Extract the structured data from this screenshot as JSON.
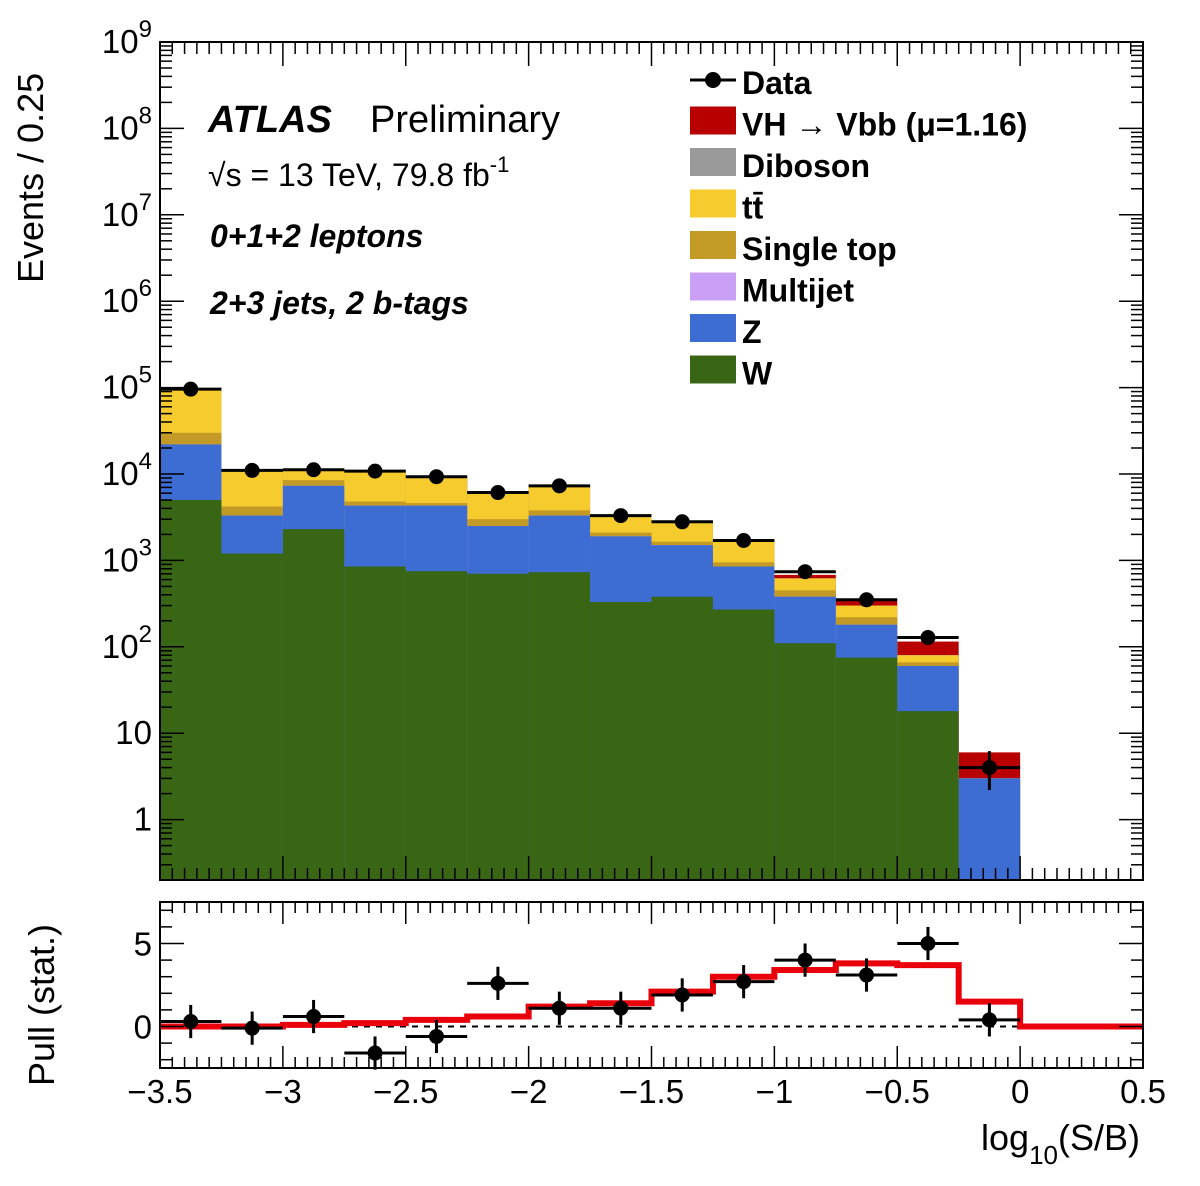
{
  "labels": {
    "atlas": "ATLAS",
    "preliminary": "Preliminary",
    "sqrt": "√s",
    "energy_lumi": " = 13 TeV, 79.8 fb",
    "lumi_exp": "-1",
    "leptons": "0+1+2 leptons",
    "jets": "2+3 jets, 2 b-tags"
  },
  "chart_data": [
    {
      "type": "bar",
      "stacked": true,
      "ylabel": "Events / 0.25",
      "yscale": "log",
      "ylim": [
        0.2,
        1000000000
      ],
      "xlim": [
        -3.5,
        0.5
      ],
      "x_edges": [
        -3.5,
        -3.25,
        -3.0,
        -2.75,
        -2.5,
        -2.25,
        -2.0,
        -1.75,
        -1.5,
        -1.25,
        -1.0,
        -0.75,
        -0.5,
        -0.25,
        0.0,
        0.25,
        0.5
      ],
      "y_tick_labels": [
        "1",
        "10",
        "10^2",
        "10^3",
        "10^4",
        "10^5",
        "10^6",
        "10^7",
        "10^8",
        "10^9"
      ],
      "legend_position": "top-right",
      "legend": [
        {
          "label": "Data",
          "kind": "marker",
          "color": "#000000"
        },
        {
          "label": "VH → Vbb (μ=1.16)",
          "kind": "fill",
          "color": "#b80000"
        },
        {
          "label": "Diboson",
          "kind": "fill",
          "color": "#999999"
        },
        {
          "label": "tt̄",
          "kind": "fill",
          "color": "#f5cb2e"
        },
        {
          "label": "Single top",
          "kind": "fill",
          "color": "#c39a25"
        },
        {
          "label": "Multijet",
          "kind": "fill",
          "color": "#c9a0f5"
        },
        {
          "label": "Z",
          "kind": "fill",
          "color": "#3d6cd2"
        },
        {
          "label": "W",
          "kind": "fill",
          "color": "#386614"
        }
      ],
      "stack_tops": {
        "W": [
          5000,
          1200,
          2300,
          850,
          750,
          700,
          730,
          330,
          380,
          270,
          110,
          75,
          18,
          0,
          0,
          0
        ],
        "Z": [
          22000,
          3300,
          7300,
          4300,
          4300,
          2500,
          3300,
          1900,
          1500,
          850,
          380,
          180,
          60,
          3,
          0,
          0
        ],
        "Multijet": [
          22000,
          3300,
          7300,
          4300,
          4300,
          2500,
          3300,
          1900,
          1500,
          850,
          380,
          180,
          60,
          3,
          0,
          0
        ],
        "Single top": [
          30000,
          4200,
          8500,
          4800,
          4600,
          3000,
          3800,
          2100,
          1650,
          950,
          450,
          220,
          66,
          3,
          0,
          0
        ],
        "tt̄": [
          95000,
          11200,
          11300,
          10800,
          9400,
          6200,
          7400,
          3300,
          2700,
          1650,
          620,
          300,
          80,
          3,
          0,
          0
        ],
        "Diboson": [
          95000,
          11200,
          11300,
          10800,
          9400,
          6200,
          7400,
          3300,
          2700,
          1650,
          620,
          300,
          80,
          3,
          0,
          0
        ],
        "VH → Vbb (μ=1.16)": [
          95000,
          11300,
          11400,
          10900,
          9500,
          6250,
          7450,
          3350,
          2750,
          1700,
          680,
          340,
          115,
          6,
          0,
          0
        ]
      },
      "data_points": {
        "x": [
          -3.375,
          -3.125,
          -2.875,
          -2.625,
          -2.375,
          -2.125,
          -1.875,
          -1.625,
          -1.375,
          -1.125,
          -0.875,
          -0.625,
          -0.375,
          -0.125
        ],
        "y": [
          96000,
          11000,
          11200,
          10800,
          9300,
          6100,
          7300,
          3300,
          2800,
          1700,
          740,
          350,
          128,
          4
        ],
        "err_low": [
          0,
          0,
          0,
          0,
          0,
          0,
          0,
          0,
          0,
          0,
          0,
          0,
          0,
          1.8
        ],
        "err_high": [
          0,
          0,
          0,
          0,
          0,
          0,
          0,
          0,
          0,
          0,
          0,
          0,
          0,
          2.2
        ]
      }
    },
    {
      "type": "line",
      "ylabel": "Pull (stat.)",
      "xlabel": "log10(S/B)",
      "xlim": [
        -3.5,
        0.5
      ],
      "ylim": [
        -2.5,
        7.5
      ],
      "y_tick_labels": [
        "0",
        "5"
      ],
      "x_tick_labels": [
        "−3.5",
        "−3",
        "−2.5",
        "−2",
        "−1.5",
        "−1",
        "−0.5",
        "0",
        "0.5"
      ],
      "series": [
        {
          "kind": "step",
          "color": "#e8000b",
          "x_edges": [
            -3.5,
            -3.25,
            -3.0,
            -2.75,
            -2.5,
            -2.25,
            -2.0,
            -1.75,
            -1.5,
            -1.25,
            -1.0,
            -0.75,
            -0.5,
            -0.25,
            0.0,
            0.25,
            0.5
          ],
          "values": [
            0.0,
            0.0,
            0.1,
            0.2,
            0.4,
            0.6,
            1.2,
            1.4,
            2.1,
            3.0,
            3.4,
            3.8,
            3.7,
            1.5,
            0.0,
            0.0
          ]
        },
        {
          "kind": "points",
          "color": "#000000",
          "x": [
            -3.375,
            -3.125,
            -2.875,
            -2.625,
            -2.375,
            -2.125,
            -1.875,
            -1.625,
            -1.375,
            -1.125,
            -0.875,
            -0.625,
            -0.375,
            -0.125
          ],
          "y": [
            0.3,
            -0.1,
            0.6,
            -1.6,
            -0.6,
            2.6,
            1.1,
            1.1,
            1.9,
            2.7,
            4.0,
            3.1,
            5.0,
            0.4
          ],
          "err": [
            1.0,
            1.0,
            1.0,
            1.0,
            1.0,
            1.0,
            1.0,
            1.0,
            1.0,
            1.0,
            1.0,
            1.0,
            1.0,
            1.0
          ]
        },
        {
          "kind": "reference",
          "y": 0
        }
      ]
    }
  ]
}
